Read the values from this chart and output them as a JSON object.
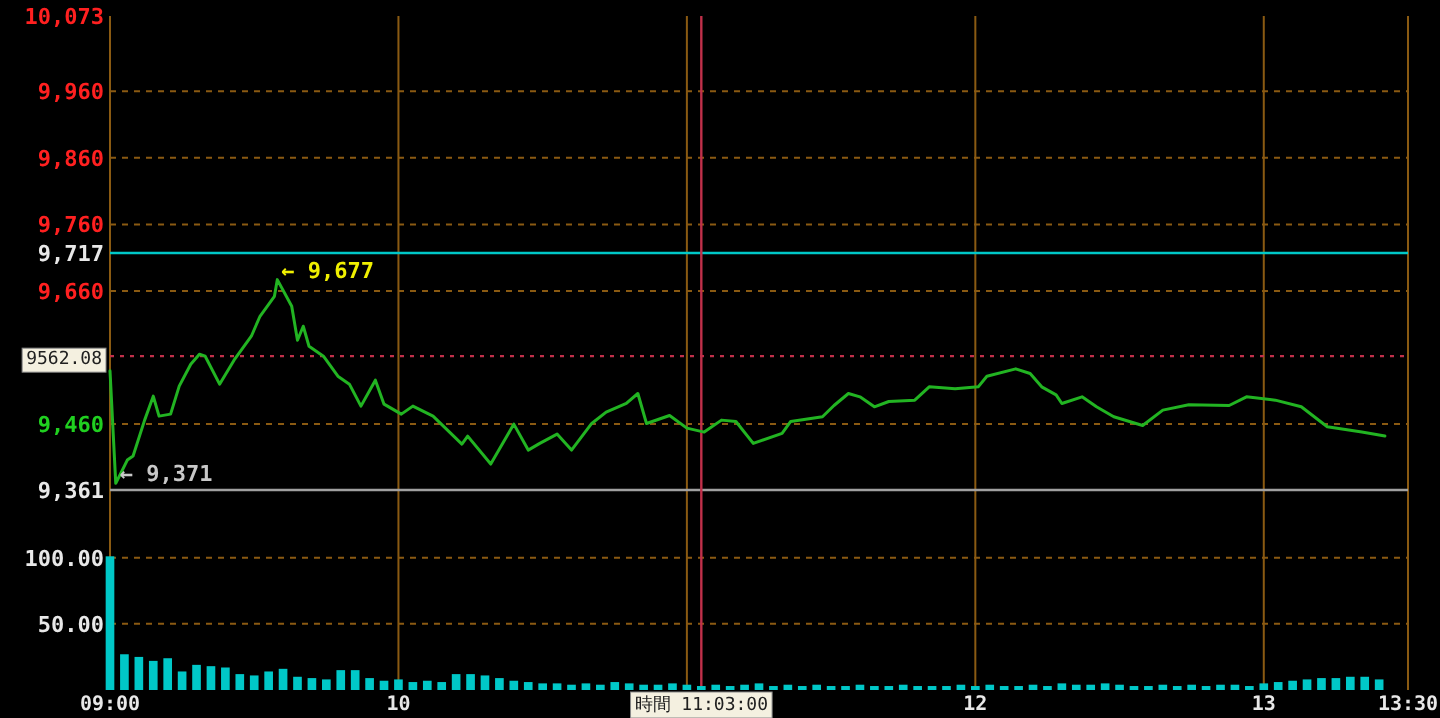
{
  "chart_data": [
    {
      "type": "line",
      "tick_labels": "y",
      "grid": true,
      "x": [
        9.0,
        9.02,
        9.06,
        9.08,
        9.12,
        9.15,
        9.17,
        9.21,
        9.24,
        9.28,
        9.31,
        9.33,
        9.38,
        9.43,
        9.49,
        9.52,
        9.57,
        9.58,
        9.63,
        9.65,
        9.67,
        9.69,
        9.74,
        9.79,
        9.83,
        9.87,
        9.92,
        9.95,
        10.01,
        10.05,
        10.12,
        10.22,
        10.24,
        10.32,
        10.4,
        10.45,
        10.49,
        10.55,
        10.6,
        10.67,
        10.72,
        10.79,
        10.83,
        10.86,
        10.94,
        11.0,
        11.06,
        11.12,
        11.17,
        11.23,
        11.33,
        11.36,
        11.47,
        11.51,
        11.56,
        11.6,
        11.65,
        11.7,
        11.79,
        11.84,
        11.93,
        12.01,
        12.04,
        12.14,
        12.19,
        12.23,
        12.28,
        12.3,
        12.37,
        12.42,
        12.48,
        12.58,
        12.65,
        12.74,
        12.88,
        12.94,
        13.04,
        13.13,
        13.22,
        13.34,
        13.42
      ],
      "series": [
        {
          "color": "#22b422",
          "values": [
            9540,
            9371,
            9406,
            9412,
            9466,
            9502,
            9472,
            9475,
            9517,
            9550,
            9565,
            9562,
            9520,
            9556,
            9592,
            9622,
            9652,
            9677,
            9637,
            9586,
            9607,
            9577,
            9562,
            9532,
            9520,
            9487,
            9526,
            9490,
            9475,
            9487,
            9472,
            9430,
            9442,
            9400,
            9460,
            9421,
            9431,
            9445,
            9421,
            9461,
            9478,
            9491,
            9506,
            9461,
            9473,
            9454,
            9448,
            9466,
            9464,
            9431,
            9446,
            9464,
            9471,
            9488,
            9506,
            9501,
            9486,
            9494,
            9496,
            9516,
            9513,
            9516,
            9532,
            9543,
            9536,
            9516,
            9504,
            9491,
            9501,
            9486,
            9471,
            9458,
            9481,
            9489,
            9488,
            9501,
            9496,
            9486,
            9456,
            9448,
            9442
          ]
        }
      ],
      "xlim": [
        9,
        13.5
      ],
      "xticks": [
        9,
        10,
        11,
        12,
        13,
        13.5
      ],
      "ylim": [
        9331,
        10073
      ],
      "yticks": [
        {
          "value": 10073,
          "label": "10,073"
        },
        {
          "value": 9960,
          "label": "9,960"
        },
        {
          "value": 9860,
          "label": "9,860"
        },
        {
          "value": 9760,
          "label": "9,760"
        },
        {
          "value": 9717,
          "label": "9,717"
        },
        {
          "value": 9660,
          "label": "9,660"
        },
        {
          "value": 9460,
          "label": "9,460"
        },
        {
          "value": 9361,
          "label": "9,361"
        }
      ],
      "ref_lines": [
        {
          "axis": "y",
          "value": 9717,
          "color": "#00c8c8"
        },
        {
          "axis": "y",
          "value": 9562.08,
          "label": "9562.08",
          "color": "#c0304a",
          "line_style": "dotted"
        },
        {
          "axis": "y",
          "value": 9361,
          "color": "#a0a0a0"
        },
        {
          "axis": "x",
          "value": 11.05,
          "color": "#c0304a"
        }
      ],
      "annotations": [
        {
          "text": "← 9,677",
          "x": 9.58,
          "y": 9677
        },
        {
          "text": "← 9,371",
          "x": 9.02,
          "y": 9371
        }
      ]
    },
    {
      "type": "bar",
      "grid": true,
      "color": "#00c8c8",
      "x": [
        9.0,
        9.05,
        9.1,
        9.15,
        9.2,
        9.25,
        9.3,
        9.35,
        9.4,
        9.45,
        9.5,
        9.55,
        9.6,
        9.65,
        9.7,
        9.75,
        9.8,
        9.85,
        9.9,
        9.95,
        10.0,
        10.05,
        10.1,
        10.15,
        10.2,
        10.25,
        10.3,
        10.35,
        10.4,
        10.45,
        10.5,
        10.55,
        10.6,
        10.65,
        10.7,
        10.75,
        10.8,
        10.85,
        10.9,
        10.95,
        11.0,
        11.05,
        11.1,
        11.15,
        11.2,
        11.25,
        11.3,
        11.35,
        11.4,
        11.45,
        11.5,
        11.55,
        11.6,
        11.65,
        11.7,
        11.75,
        11.8,
        11.85,
        11.9,
        11.95,
        12.0,
        12.05,
        12.1,
        12.15,
        12.2,
        12.25,
        12.3,
        12.35,
        12.4,
        12.45,
        12.5,
        12.55,
        12.6,
        12.65,
        12.7,
        12.75,
        12.8,
        12.85,
        12.9,
        12.95,
        13.0,
        13.05,
        13.1,
        13.15,
        13.2,
        13.25,
        13.3,
        13.35,
        13.4
      ],
      "values": [
        101,
        27,
        25,
        22,
        24,
        14,
        19,
        18,
        17,
        12,
        11,
        14,
        16,
        10,
        9,
        8,
        15,
        15,
        9,
        7,
        8,
        6,
        7,
        6,
        12,
        12,
        11,
        9,
        7,
        6,
        5,
        5,
        4,
        5,
        4,
        6,
        5,
        4,
        4,
        5,
        4,
        3,
        4,
        3,
        4,
        5,
        3,
        4,
        3,
        4,
        3,
        3,
        4,
        3,
        3,
        4,
        3,
        3,
        3,
        4,
        3,
        4,
        3,
        3,
        4,
        3,
        5,
        4,
        4,
        5,
        4,
        3,
        3,
        4,
        3,
        4,
        3,
        4,
        4,
        3,
        5,
        6,
        7,
        8,
        9,
        9,
        10,
        10,
        8
      ],
      "xlim": [
        9,
        13.5
      ],
      "xticks": [
        {
          "value": 9,
          "label": "09:00"
        },
        10,
        {
          "value": 11,
          "label": null
        },
        12,
        13,
        {
          "value": 13.5,
          "label": "13:30"
        }
      ],
      "ylim": [
        0,
        136
      ],
      "yticks": [
        {
          "value": 50,
          "label": "50.00"
        },
        {
          "value": 100,
          "label": "100.00"
        }
      ],
      "ref_lines": [
        {
          "axis": "x",
          "value": 11.05,
          "label": "時間 11:03:00",
          "color": "#c0304a"
        }
      ]
    }
  ]
}
